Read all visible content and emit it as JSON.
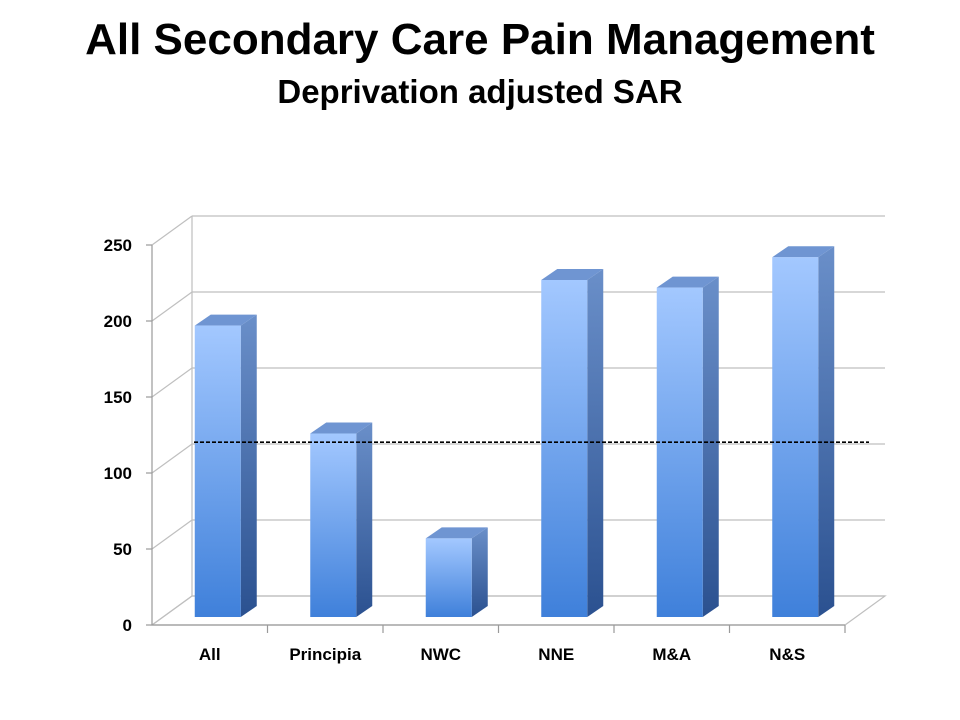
{
  "header": {
    "title": "All Secondary Care Pain Management",
    "subtitle": "Deprivation adjusted SAR"
  },
  "chart_data": {
    "type": "bar",
    "categories": [
      "All",
      "Principia",
      "NWC",
      "NNE",
      "M&A",
      "N&S"
    ],
    "values": [
      195,
      124,
      55,
      225,
      220,
      240
    ],
    "title": "All Secondary Care Pain Management",
    "subtitle": "Deprivation adjusted SAR",
    "xlabel": "",
    "ylabel": "",
    "ylim": [
      0,
      250
    ],
    "yticks": [
      0,
      50,
      100,
      150,
      200,
      250
    ],
    "reference_line": 115,
    "grid": true,
    "legend": "none",
    "style": "3d-bar",
    "colors": {
      "bar_light": "#9cc3ff",
      "bar_dark": "#3a7bd5",
      "bar_side": "#2f5a99",
      "bar_top": "#6f95d2",
      "grid": "#bfbfbf"
    }
  }
}
